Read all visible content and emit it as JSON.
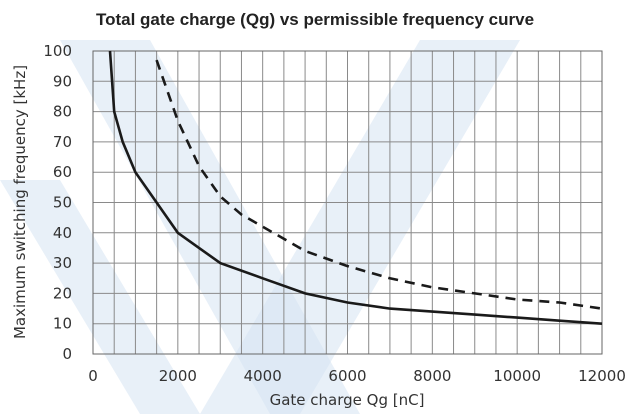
{
  "chart_data": {
    "type": "line",
    "title": "Total gate charge (Qg) vs permissible frequency curve",
    "xlabel": "Gate charge Qg [nC]",
    "ylabel": "Maximum switching frequency [kHz]",
    "xlim": [
      0,
      12000
    ],
    "ylim": [
      0,
      100
    ],
    "x_ticks": [
      "0",
      "2000",
      "4000",
      "6000",
      "8000",
      "10000",
      "12000"
    ],
    "y_ticks": [
      "0",
      "10",
      "20",
      "30",
      "40",
      "50",
      "60",
      "70",
      "80",
      "90",
      "100"
    ],
    "grid": true,
    "series": [
      {
        "style": "solid",
        "x": [
          400,
          500,
          700,
          1000,
          1500,
          2000,
          2500,
          3000,
          4000,
          5000,
          6000,
          7000,
          8000,
          9000,
          10000,
          11000,
          12000
        ],
        "y": [
          100,
          80,
          70,
          60,
          50,
          40,
          35,
          30,
          25,
          20,
          17,
          15,
          14,
          13,
          12,
          11,
          10
        ]
      },
      {
        "style": "dashed",
        "x": [
          1500,
          2000,
          2500,
          3000,
          3500,
          4000,
          5000,
          6000,
          7000,
          8000,
          9000,
          10000,
          11000,
          12000
        ],
        "y": [
          97,
          77,
          62,
          52,
          46,
          42,
          34,
          29,
          25,
          22,
          20,
          18,
          17,
          15
        ]
      }
    ],
    "colors": {
      "line": "#1a1a1a",
      "grid": "#8a8a8a",
      "watermark": "#d6e4f3"
    }
  }
}
